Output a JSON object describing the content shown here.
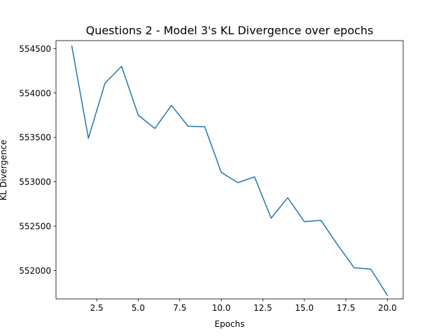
{
  "chart_data": {
    "type": "line",
    "title": "Questions 2 - Model 3's KL Divergence over epochs",
    "xlabel": "Epochs",
    "ylabel": "KL Divergence",
    "xlim": [
      0.05,
      20.95
    ],
    "ylim": [
      551680,
      554590
    ],
    "xticks": [
      2.5,
      5.0,
      7.5,
      10.0,
      12.5,
      15.0,
      17.5,
      20.0
    ],
    "xtick_labels": [
      "2.5",
      "5.0",
      "7.5",
      "10.0",
      "12.5",
      "15.0",
      "17.5",
      "20.0"
    ],
    "yticks": [
      552000,
      552500,
      553000,
      553500,
      554000,
      554500
    ],
    "ytick_labels": [
      "552000",
      "552500",
      "553000",
      "553500",
      "554000",
      "554500"
    ],
    "grid": false,
    "legend": "none",
    "series": [
      {
        "color": "#1f77b4",
        "x": [
          1,
          2,
          3,
          4,
          5,
          6,
          7,
          8,
          9,
          10,
          11,
          12,
          13,
          14,
          15,
          16,
          17,
          18,
          19,
          20
        ],
        "y": [
          554530,
          553490,
          554110,
          554300,
          553750,
          553600,
          553860,
          553625,
          553620,
          553105,
          552990,
          553055,
          552590,
          552820,
          552550,
          552565,
          552290,
          552030,
          552015,
          551720
        ]
      }
    ]
  }
}
